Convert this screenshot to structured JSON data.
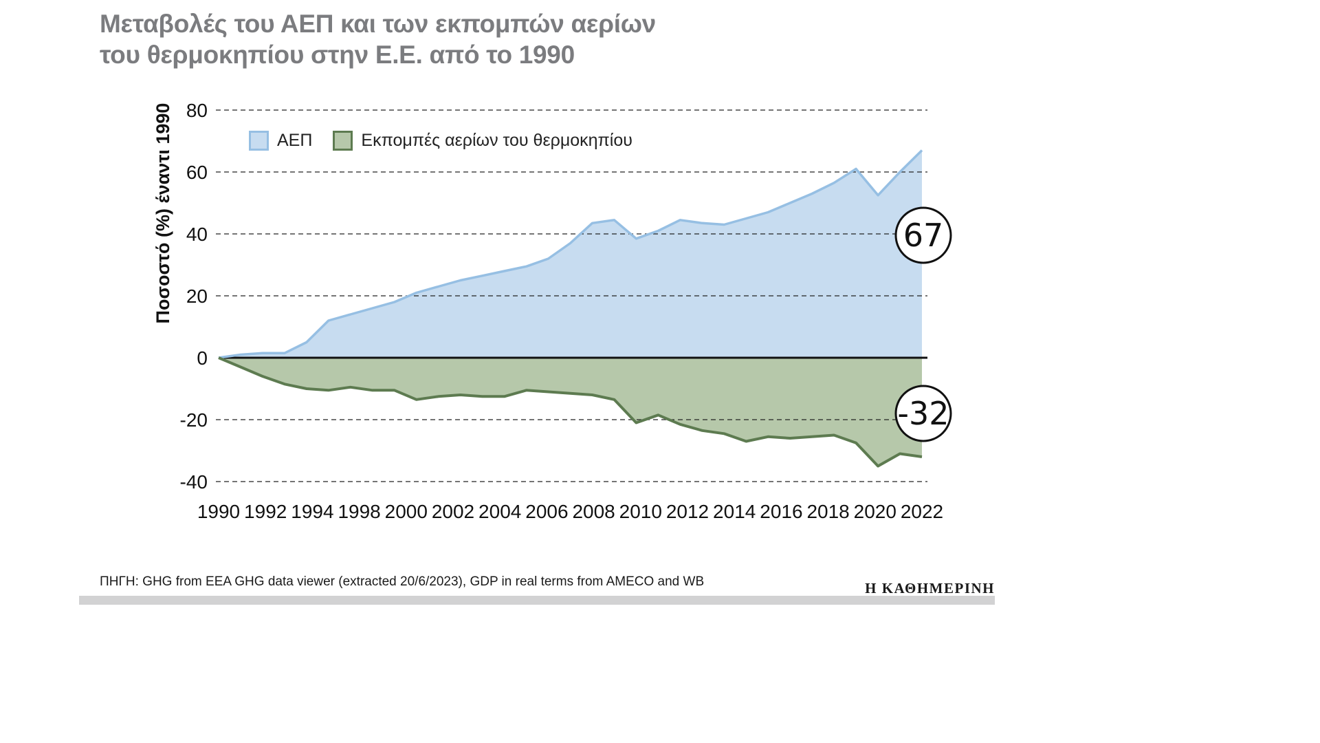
{
  "title": {
    "line1": "Μεταβολές του ΑΕΠ και των εκπομπών αερίων",
    "line2": "του θερμοκηπίου στην Ε.Ε. από το 1990"
  },
  "legend": [
    {
      "label": "ΑΕΠ",
      "fill": "#c7dcf0",
      "stroke": "#96bfe3"
    },
    {
      "label": "Εκπομπές αερίων του θερμοκηπίου",
      "fill": "#b6c8aa",
      "stroke": "#5d7b50"
    }
  ],
  "footer": {
    "source": "ΠΗΓΗ: GHG from EEA GHG data viewer (extracted 20/6/2023), GDP in real terms from AMECO and WB",
    "logo": "Η ΚΑΘΗΜΕΡΙΝΗ"
  },
  "chart_data": {
    "type": "area",
    "title": "Μεταβολές του ΑΕΠ και των εκπομπών αερίων του θερμοκηπίου στην Ε.Ε. από το 1990",
    "ylabel": "Ποσοστό (%) έναντι 1990",
    "ylim": [
      -40,
      80
    ],
    "yticks": [
      80,
      60,
      40,
      20,
      0,
      -20,
      -40
    ],
    "grid": "dashed-horizontal",
    "legend_position": "top-left-inside",
    "xtick_labels": [
      "1990",
      "1992",
      "1994",
      "1998",
      "2000",
      "2002",
      "2004",
      "2006",
      "2008",
      "2010",
      "2012",
      "2014",
      "2016",
      "2018",
      "2020",
      "2022"
    ],
    "years": [
      1990,
      1991,
      1992,
      1993,
      1994,
      1995,
      1996,
      1997,
      1998,
      1999,
      2000,
      2001,
      2002,
      2003,
      2004,
      2005,
      2006,
      2007,
      2008,
      2009,
      2010,
      2011,
      2012,
      2013,
      2014,
      2015,
      2016,
      2017,
      2018,
      2019,
      2020,
      2021,
      2022
    ],
    "series": [
      {
        "name": "ΑΕΠ",
        "key": "gdp",
        "end_label": "67",
        "fill": "#c7dcf0",
        "stroke": "#96bfe3",
        "values": [
          0,
          1,
          1.5,
          1.5,
          5,
          12,
          14,
          16,
          18,
          21,
          23,
          25,
          26.5,
          28,
          29.5,
          32,
          37,
          43.5,
          44.5,
          38.5,
          41,
          44.5,
          43.5,
          43,
          45,
          47,
          50,
          53,
          56.5,
          61,
          52.5,
          60,
          67
        ]
      },
      {
        "name": "Εκπομπές αερίων του θερμοκηπίου",
        "key": "ghg",
        "end_label": "-32",
        "fill": "#b6c8aa",
        "stroke": "#5d7b50",
        "values": [
          0,
          -3,
          -6,
          -8.5,
          -10,
          -10.5,
          -9.5,
          -10.5,
          -10.5,
          -13.5,
          -12.5,
          -12,
          -12.5,
          -12.5,
          -10.5,
          -11,
          -11.5,
          -12,
          -13.5,
          -21,
          -18.5,
          -21.5,
          -23.5,
          -24.5,
          -27,
          -25.5,
          -26,
          -25.5,
          -25,
          -27.5,
          -35,
          -31,
          -32
        ]
      }
    ]
  }
}
